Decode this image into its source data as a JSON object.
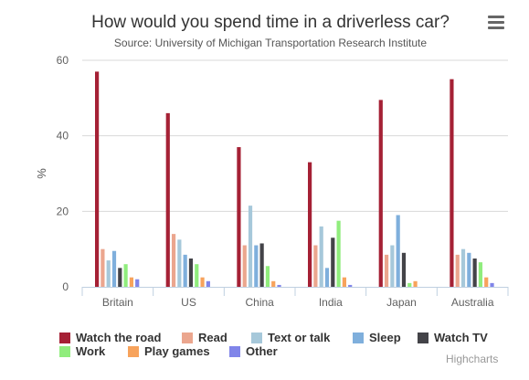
{
  "chart_data": {
    "type": "bar",
    "title": "How would you spend time in a driverless car?",
    "subtitle": "Source: University of Michigan Transportation Research Institute",
    "xlabel": "",
    "ylabel": "%",
    "ylim": [
      0,
      60
    ],
    "yticks": [
      "0",
      "20",
      "40",
      "60"
    ],
    "grid": true,
    "legend_position": "bottom-left",
    "categories": [
      "Britain",
      "US",
      "China",
      "India",
      "Japan",
      "Australia"
    ],
    "series": [
      {
        "name": "Watch the road",
        "color": "#A52135",
        "values": [
          57,
          46,
          37,
          33,
          49.5,
          55
        ]
      },
      {
        "name": "Read",
        "color": "#EBA68E",
        "values": [
          10,
          14,
          11,
          11,
          8.5,
          8.5
        ]
      },
      {
        "name": "Text or talk",
        "color": "#A6C8DA",
        "values": [
          7,
          12.5,
          21.5,
          16,
          11,
          10
        ]
      },
      {
        "name": "Sleep",
        "color": "#7FAFDC",
        "values": [
          9.5,
          8.5,
          11,
          5,
          19,
          9
        ]
      },
      {
        "name": "Watch TV",
        "color": "#434348",
        "values": [
          5,
          7.5,
          11.5,
          13,
          9,
          7.5
        ]
      },
      {
        "name": "Work",
        "color": "#90ED7D",
        "values": [
          6,
          6,
          5.5,
          17.5,
          1,
          6.5
        ]
      },
      {
        "name": "Play games",
        "color": "#F7A35C",
        "values": [
          2.5,
          2.5,
          1.5,
          2.5,
          1.5,
          2.5
        ]
      },
      {
        "name": "Other",
        "color": "#8085E9",
        "values": [
          2,
          1.5,
          0.5,
          0.5,
          0,
          1
        ]
      }
    ]
  },
  "menu_icon": "hamburger-icon",
  "credits": "Highcharts"
}
